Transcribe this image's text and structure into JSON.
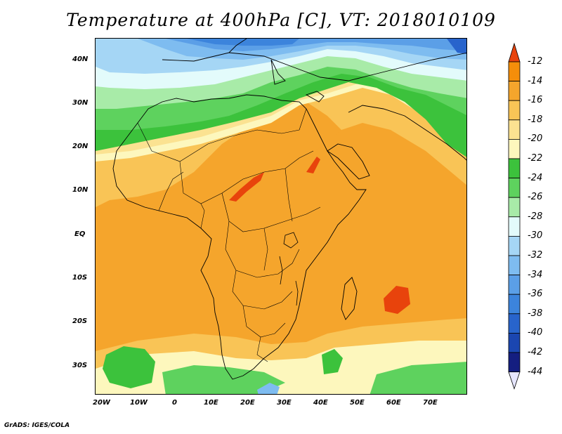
{
  "title": "Temperature at 400hPa [C], VT: 2018010109",
  "credit": "GrADS: IGES/COLA",
  "map": {
    "lat_labels": [
      "40N",
      "30N",
      "20N",
      "10N",
      "EQ",
      "10S",
      "20S",
      "30S"
    ],
    "lon_labels": [
      "20W",
      "10W",
      "0",
      "10E",
      "20E",
      "30E",
      "40E",
      "50E",
      "60E",
      "70E"
    ],
    "lat_range": [
      -37,
      45
    ],
    "lon_range": [
      -22,
      80
    ]
  },
  "colorbar": {
    "labels": [
      "-12",
      "-14",
      "-16",
      "-18",
      "-20",
      "-22",
      "-24",
      "-26",
      "-28",
      "-30",
      "-32",
      "-34",
      "-36",
      "-38",
      "-40",
      "-42",
      "-44"
    ],
    "colors": [
      "#e8430c",
      "#f58e0a",
      "#f5a52c",
      "#f9c456",
      "#fbe291",
      "#fdf7bd",
      "#3cc23c",
      "#5ed25e",
      "#a8eba8",
      "#e3fbfb",
      "#a5d6f5",
      "#7ebcf0",
      "#5b9fe7",
      "#3c84dc",
      "#2864cc",
      "#1b46b0",
      "#141e80"
    ],
    "top_arrow_color": "#e8430c",
    "bottom_arrow_color": "#e6e6ff"
  }
}
